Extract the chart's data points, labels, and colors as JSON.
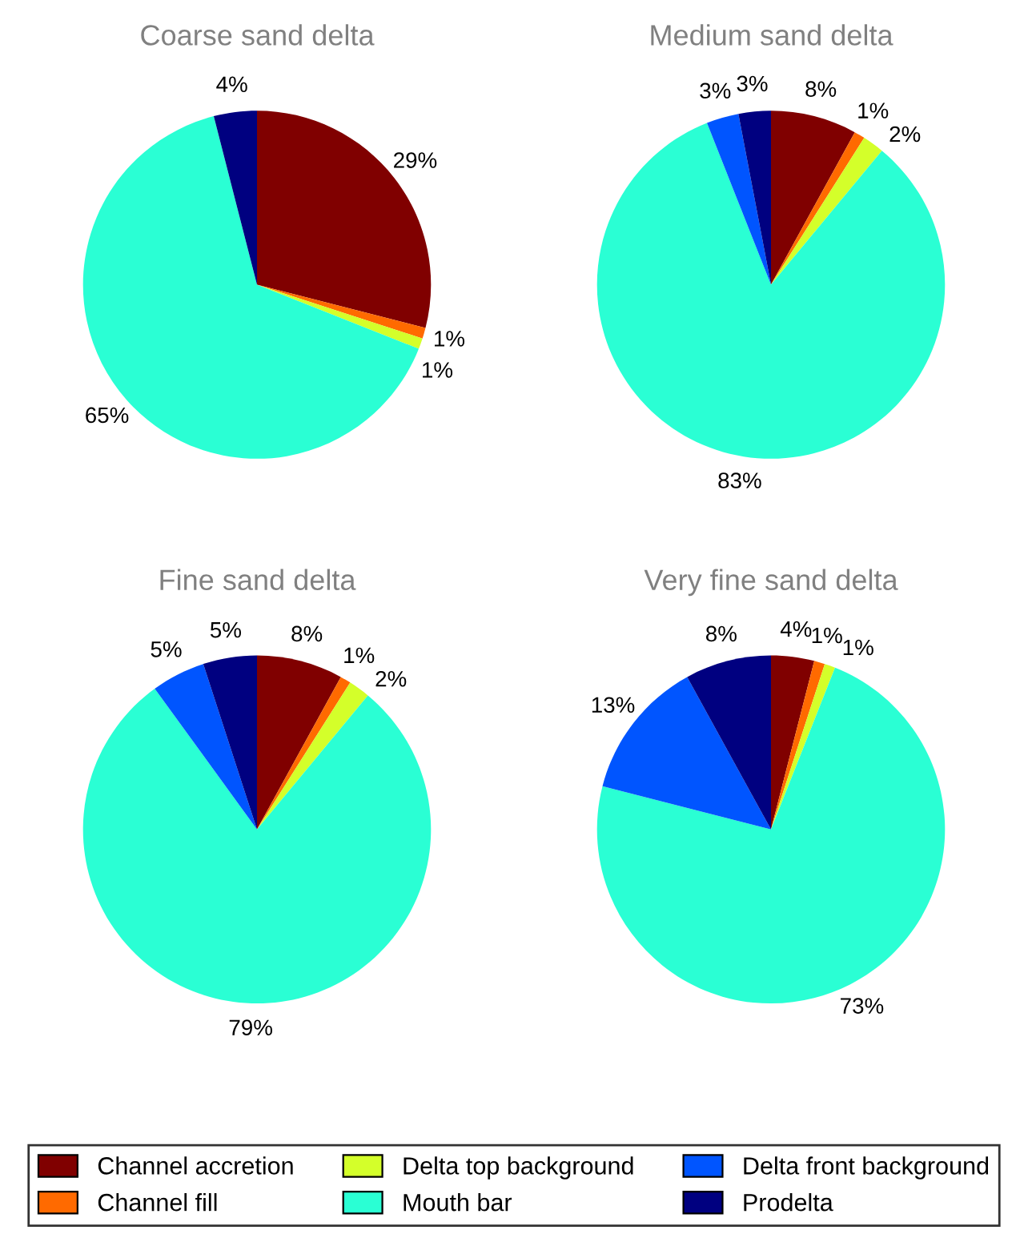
{
  "chart_data": [
    {
      "type": "pie",
      "title": "Coarse sand delta",
      "categories": [
        "Channel accretion",
        "Channel fill",
        "Delta top background",
        "Mouth bar",
        "Delta front background",
        "Prodelta"
      ],
      "values": [
        29,
        1,
        1,
        65,
        0,
        4
      ],
      "value_labels": [
        "29%",
        "1%",
        "1%",
        "65%",
        null,
        "4%"
      ],
      "colors": [
        "#800000",
        "#ff6a00",
        "#d4ff2a",
        "#2affd4",
        "#0055ff",
        "#000080"
      ],
      "legend": "bottom"
    },
    {
      "type": "pie",
      "title": "Medium sand delta",
      "categories": [
        null,
        null,
        null,
        null,
        null,
        null
      ],
      "values": [
        8,
        1,
        2,
        83,
        3,
        3
      ],
      "value_labels": [
        "8%",
        "1%",
        "2%",
        "83%",
        "3%",
        "3%"
      ],
      "colors": [
        "#800000",
        "#ff6a00",
        "#d4ff2a",
        "#2affd4",
        "#0055ff",
        "#000080"
      ]
    },
    {
      "type": "pie",
      "title": "Fine sand delta",
      "categories": [
        null,
        null,
        null,
        null,
        null,
        null
      ],
      "values": [
        8,
        1,
        2,
        79,
        5,
        5
      ],
      "value_labels": [
        "8%",
        "1%",
        "2%",
        "79%",
        "5%",
        "5%"
      ],
      "colors": [
        "#800000",
        "#ff6a00",
        "#d4ff2a",
        "#2affd4",
        "#0055ff",
        "#000080"
      ]
    },
    {
      "type": "pie",
      "title": "Very fine sand delta",
      "categories": [
        null,
        null,
        null,
        null,
        null,
        null
      ],
      "values": [
        4,
        1,
        1,
        73,
        13,
        8
      ],
      "value_labels": [
        "4%",
        "1%",
        "1%",
        "73%",
        "13%",
        "8%"
      ],
      "colors": [
        "#800000",
        "#ff6a00",
        "#d4ff2a",
        "#2affd4",
        "#0055ff",
        "#000080"
      ]
    }
  ]
}
